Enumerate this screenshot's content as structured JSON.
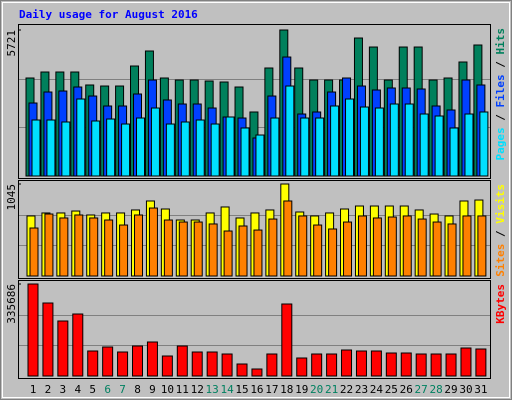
{
  "title": "Daily usage for August 2016",
  "legend_separator": " / ",
  "chart_data": [
    {
      "type": "bar",
      "ylim": [
        0,
        5721
      ],
      "yticks": [
        5721
      ],
      "series": [
        {
          "name": "Hits",
          "color": "#00805c",
          "values": [
            3840,
            4075,
            4075,
            4075,
            3566,
            3526,
            3526,
            4310,
            4898,
            3840,
            3761,
            3761,
            3722,
            3683,
            3487,
            2508,
            4232,
            5721,
            4232,
            3761,
            3761,
            3761,
            5407,
            5054,
            3761,
            5054,
            5054,
            3761,
            3840,
            4467,
            5133
          ]
        },
        {
          "name": "Files",
          "color": "#0040ff",
          "values": [
            2860,
            3291,
            3330,
            3487,
            3134,
            2743,
            2743,
            3213,
            3761,
            2978,
            2821,
            2821,
            2664,
            2312,
            2272,
            1489,
            3134,
            4662,
            2429,
            2508,
            3291,
            3840,
            3526,
            3370,
            3448,
            3448,
            3409,
            2743,
            2586,
            3761,
            3566
          ]
        },
        {
          "name": "Pages",
          "color": "#00e0ff",
          "values": [
            2194,
            2194,
            2116,
            3017,
            2155,
            2233,
            2037,
            2272,
            2664,
            2037,
            2116,
            2194,
            2037,
            2312,
            1881,
            1606,
            2272,
            3526,
            2272,
            2272,
            2743,
            3017,
            2703,
            2664,
            2821,
            2821,
            2429,
            2351,
            1881,
            2429,
            2508
          ]
        }
      ]
    },
    {
      "type": "bar",
      "ylim": [
        0,
        1045
      ],
      "yticks": [
        1045
      ],
      "series": [
        {
          "name": "Visits",
          "color": "#ffff00",
          "values": [
            682,
            716,
            716,
            738,
            693,
            716,
            716,
            750,
            852,
            761,
            636,
            636,
            716,
            784,
            659,
            716,
            750,
            1045,
            727,
            682,
            716,
            761,
            795,
            795,
            795,
            795,
            750,
            704,
            682,
            852,
            863
          ]
        },
        {
          "name": "Sites",
          "color": "#ff8000",
          "values": [
            545,
            704,
            659,
            693,
            659,
            636,
            579,
            693,
            772,
            636,
            613,
            613,
            591,
            511,
            568,
            522,
            647,
            852,
            682,
            579,
            534,
            613,
            682,
            659,
            670,
            682,
            647,
            613,
            591,
            682,
            682
          ]
        }
      ]
    },
    {
      "type": "bar",
      "ylim": [
        0,
        335686
      ],
      "yticks": [
        335686
      ],
      "categories": [
        "1",
        "2",
        "3",
        "4",
        "5",
        "6",
        "7",
        "8",
        "9",
        "10",
        "11",
        "12",
        "13",
        "14",
        "15",
        "16",
        "17",
        "18",
        "19",
        "20",
        "21",
        "22",
        "23",
        "24",
        "25",
        "26",
        "27",
        "28",
        "29",
        "30",
        "31"
      ],
      "category_colors": [
        "#000000",
        "#000000",
        "#000000",
        "#000000",
        "#000000",
        "#008060",
        "#008060",
        "#000000",
        "#000000",
        "#000000",
        "#000000",
        "#000000",
        "#008060",
        "#008060",
        "#000000",
        "#000000",
        "#000000",
        "#000000",
        "#000000",
        "#008060",
        "#008060",
        "#000000",
        "#000000",
        "#000000",
        "#000000",
        "#000000",
        "#008060",
        "#008060",
        "#000000",
        "#000000",
        "#000000"
      ],
      "series": [
        {
          "name": "KBytes",
          "color": "#ff0000",
          "values": [
            335686,
            266362,
            200684,
            226226,
            91220,
            105815,
            87571,
            109464,
            124059,
            72976,
            109464,
            87571,
            87571,
            80274,
            43786,
            25542,
            80274,
            262714,
            65678,
            80274,
            80274,
            94869,
            91220,
            91220,
            83922,
            83922,
            80274,
            80274,
            80274,
            102166,
            98518
          ]
        }
      ]
    }
  ]
}
